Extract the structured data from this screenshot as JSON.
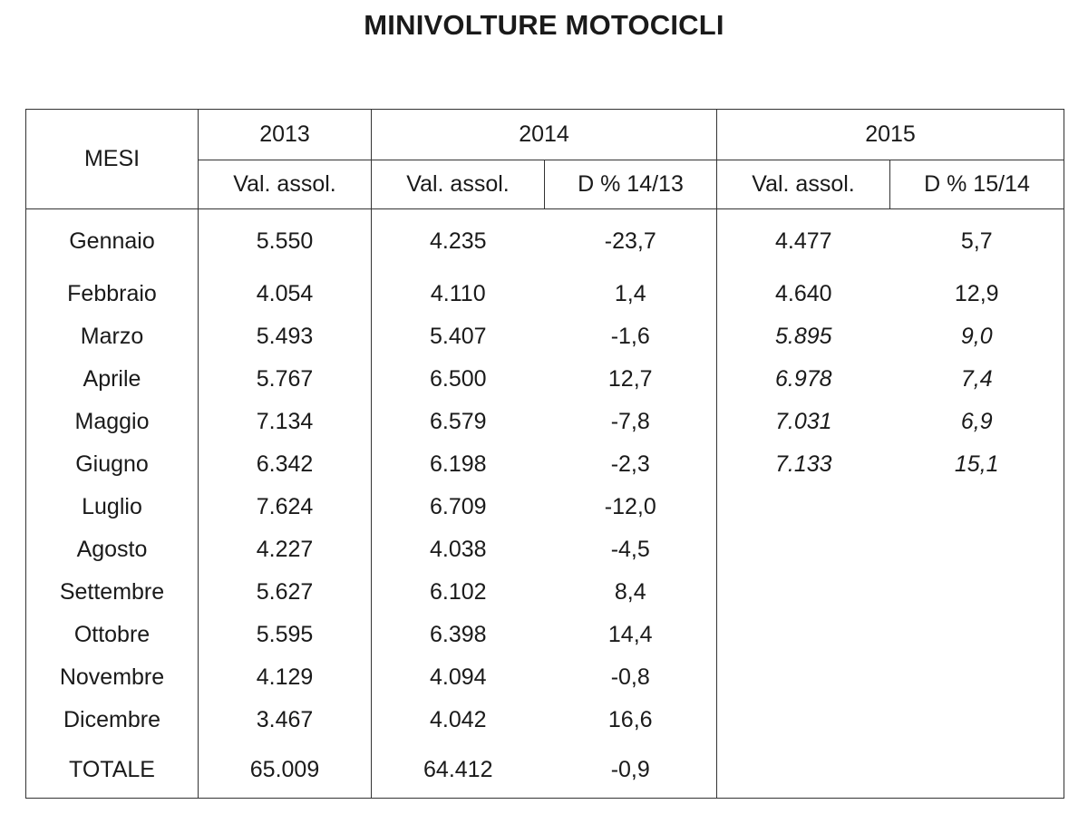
{
  "title": "MINIVOLTURE MOTOCICLI",
  "headers": {
    "mesi": "MESI",
    "y2013": "2013",
    "y2014": "2014",
    "y2015": "2015",
    "val_assol": "Val. assol.",
    "d1413": "D % 14/13",
    "d1514": "D % 15/14"
  },
  "rows": [
    {
      "month": "Gennaio",
      "v2013": "5.550",
      "v2014": "4.235",
      "d1413": "-23,7",
      "v2015": "4.477",
      "d1514": "5,7",
      "italic2015": false
    },
    {
      "month": "Febbraio",
      "v2013": "4.054",
      "v2014": "4.110",
      "d1413": "1,4",
      "v2015": "4.640",
      "d1514": "12,9",
      "italic2015": false
    },
    {
      "month": "Marzo",
      "v2013": "5.493",
      "v2014": "5.407",
      "d1413": "-1,6",
      "v2015": "5.895",
      "d1514": "9,0",
      "italic2015": true
    },
    {
      "month": "Aprile",
      "v2013": "5.767",
      "v2014": "6.500",
      "d1413": "12,7",
      "v2015": "6.978",
      "d1514": "7,4",
      "italic2015": true
    },
    {
      "month": "Maggio",
      "v2013": "7.134",
      "v2014": "6.579",
      "d1413": "-7,8",
      "v2015": "7.031",
      "d1514": "6,9",
      "italic2015": true
    },
    {
      "month": "Giugno",
      "v2013": "6.342",
      "v2014": "6.198",
      "d1413": "-2,3",
      "v2015": "7.133",
      "d1514": "15,1",
      "italic2015": true
    },
    {
      "month": "Luglio",
      "v2013": "7.624",
      "v2014": "6.709",
      "d1413": "-12,0",
      "v2015": "",
      "d1514": "",
      "italic2015": false
    },
    {
      "month": "Agosto",
      "v2013": "4.227",
      "v2014": "4.038",
      "d1413": "-4,5",
      "v2015": "",
      "d1514": "",
      "italic2015": false
    },
    {
      "month": "Settembre",
      "v2013": "5.627",
      "v2014": "6.102",
      "d1413": "8,4",
      "v2015": "",
      "d1514": "",
      "italic2015": false
    },
    {
      "month": "Ottobre",
      "v2013": "5.595",
      "v2014": "6.398",
      "d1413": "14,4",
      "v2015": "",
      "d1514": "",
      "italic2015": false
    },
    {
      "month": "Novembre",
      "v2013": "4.129",
      "v2014": "4.094",
      "d1413": "-0,8",
      "v2015": "",
      "d1514": "",
      "italic2015": false
    },
    {
      "month": "Dicembre",
      "v2013": "3.467",
      "v2014": "4.042",
      "d1413": "16,6",
      "v2015": "",
      "d1514": "",
      "italic2015": false
    }
  ],
  "total": {
    "month": "TOTALE",
    "v2013": "65.009",
    "v2014": "64.412",
    "d1413": "-0,9",
    "v2015": "",
    "d1514": ""
  }
}
